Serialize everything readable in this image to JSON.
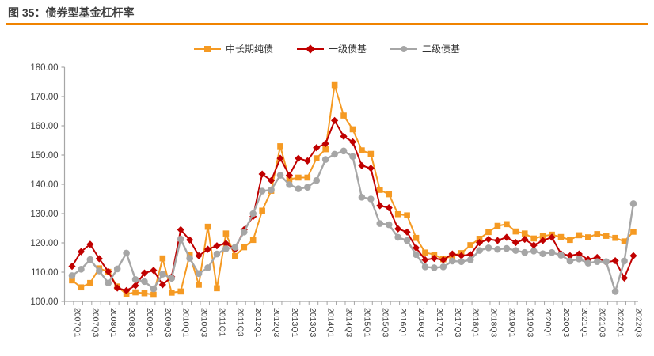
{
  "header": {
    "title": "图 35：债券型基金杠杆率"
  },
  "colors": {
    "accent_rule": "#F08300",
    "orange": "#F59A23",
    "red": "#C00000",
    "gray": "#A6A6A6",
    "axis_text": "#404040",
    "axis_line": "#A6A6A6"
  },
  "chart_data": {
    "type": "line",
    "title": "图 35：债券型基金杠杆率",
    "xlabel": "",
    "ylabel": "",
    "ylim": [
      100,
      180
    ],
    "y_tick_step": 10,
    "y_tick_labels": [
      "100.00",
      "110.00",
      "120.00",
      "130.00",
      "140.00",
      "150.00",
      "160.00",
      "170.00",
      "180.00"
    ],
    "grid": false,
    "legend_position": "top",
    "x_tick_every": 2,
    "x_tick_labels": [
      "2007Q1",
      "2007Q3",
      "2008Q1",
      "2008Q3",
      "2009Q1",
      "2009Q3",
      "2010Q1",
      "2010Q3",
      "2011Q1",
      "2011Q3",
      "2012Q1",
      "2012Q3",
      "2013Q1",
      "2013Q3",
      "2014Q1",
      "2014Q3",
      "2015Q1",
      "2015Q3",
      "2016Q1",
      "2016Q3",
      "2017Q1",
      "2017Q3",
      "2018Q1",
      "2018Q3",
      "2019Q1",
      "2019Q3",
      "2020Q1",
      "2020Q3",
      "2021Q1",
      "2021Q3",
      "2022Q1",
      "2022Q3"
    ],
    "categories": [
      "2007Q1",
      "2007Q2",
      "2007Q3",
      "2007Q4",
      "2008Q1",
      "2008Q2",
      "2008Q3",
      "2008Q4",
      "2009Q1",
      "2009Q2",
      "2009Q3",
      "2009Q4",
      "2010Q1",
      "2010Q2",
      "2010Q3",
      "2010Q4",
      "2011Q1",
      "2011Q2",
      "2011Q3",
      "2011Q4",
      "2012Q1",
      "2012Q2",
      "2012Q3",
      "2012Q4",
      "2013Q1",
      "2013Q2",
      "2013Q3",
      "2013Q4",
      "2014Q1",
      "2014Q2",
      "2014Q3",
      "2014Q4",
      "2015Q1",
      "2015Q2",
      "2015Q3",
      "2015Q4",
      "2016Q1",
      "2016Q2",
      "2016Q3",
      "2016Q4",
      "2017Q1",
      "2017Q2",
      "2017Q3",
      "2017Q4",
      "2018Q1",
      "2018Q2",
      "2018Q3",
      "2018Q4",
      "2019Q1",
      "2019Q2",
      "2019Q3",
      "2019Q4",
      "2020Q1",
      "2020Q2",
      "2020Q3",
      "2020Q4",
      "2021Q1",
      "2021Q2",
      "2021Q3",
      "2021Q4",
      "2022Q1",
      "2022Q2",
      "2022Q3"
    ],
    "series": [
      {
        "name": "中长期纯债",
        "color": "#F59A23",
        "marker": "square",
        "values": [
          107.2,
          104.8,
          106.3,
          111.3,
          110.1,
          105.1,
          102.5,
          103.1,
          102.8,
          102.3,
          114.7,
          103.0,
          103.4,
          116.0,
          105.7,
          125.5,
          104.5,
          123.2,
          115.5,
          118.5,
          121.0,
          131.0,
          137.8,
          153.0,
          141.7,
          142.3,
          142.3,
          148.9,
          152.0,
          173.9,
          163.5,
          158.8,
          151.6,
          150.4,
          138.1,
          136.6,
          129.8,
          129.4,
          121.7,
          116.7,
          116.0,
          114.4,
          115.6,
          116.5,
          119.2,
          121.4,
          123.7,
          125.8,
          126.4,
          123.9,
          123.2,
          121.5,
          122.3,
          122.8,
          122.0,
          121.0,
          122.6,
          121.9,
          123.0,
          122.4,
          121.7,
          120.5,
          123.8
        ]
      },
      {
        "name": "一级债基",
        "color": "#C00000",
        "marker": "diamond",
        "values": [
          112.0,
          117.0,
          119.5,
          114.6,
          110.2,
          104.6,
          103.7,
          105.4,
          109.7,
          110.6,
          105.7,
          108.4,
          124.5,
          121.0,
          115.6,
          117.8,
          119.0,
          119.8,
          117.8,
          124.5,
          129.0,
          143.5,
          141.3,
          148.9,
          143.1,
          148.9,
          148.0,
          152.5,
          153.9,
          161.8,
          156.4,
          154.5,
          146.4,
          145.5,
          132.7,
          132.0,
          124.8,
          123.7,
          118.3,
          114.2,
          114.7,
          114.2,
          116.2,
          115.6,
          116.0,
          120.1,
          121.2,
          120.8,
          121.9,
          120.1,
          121.2,
          119.2,
          120.8,
          121.9,
          116.3,
          115.6,
          116.2,
          114.3,
          115.0,
          113.4,
          113.9,
          108.0,
          115.6
        ]
      },
      {
        "name": "二级债基",
        "color": "#A6A6A6",
        "marker": "circle",
        "values": [
          108.8,
          111.0,
          114.3,
          110.4,
          106.3,
          111.1,
          116.5,
          107.5,
          106.8,
          104.3,
          109.3,
          107.9,
          121.3,
          114.7,
          109.5,
          111.5,
          116.2,
          118.0,
          118.5,
          123.7,
          130.0,
          137.7,
          138.1,
          143.1,
          139.9,
          138.5,
          139.0,
          141.3,
          148.5,
          150.3,
          151.4,
          149.5,
          135.6,
          135.0,
          126.6,
          126.2,
          121.9,
          120.8,
          116.0,
          111.8,
          111.5,
          111.8,
          113.8,
          113.6,
          114.2,
          117.4,
          118.3,
          117.8,
          118.1,
          117.4,
          116.7,
          117.2,
          116.3,
          116.7,
          115.8,
          113.8,
          114.5,
          113.1,
          113.6,
          113.6,
          103.4,
          113.8,
          133.4
        ]
      }
    ]
  }
}
